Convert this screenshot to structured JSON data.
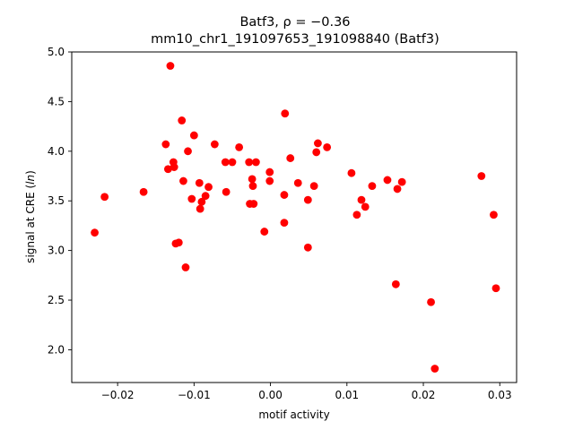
{
  "chart_data": {
    "type": "scatter",
    "title_line1": "Batf3, ρ = −0.36",
    "title_line2": "mm10_chr1_191097653_191098840 (Batf3)",
    "xlabel": "motif activity",
    "ylabel": "signal at CRE (ln)",
    "xlim": [
      -0.026,
      0.0322
    ],
    "ylim": [
      1.67,
      5.0
    ],
    "x_ticks": [
      -0.02,
      -0.01,
      0.0,
      0.01,
      0.02,
      0.03
    ],
    "x_tick_labels": [
      "−0.02",
      "−0.01",
      "0.00",
      "0.01",
      "0.02",
      "0.03"
    ],
    "y_ticks": [
      2.0,
      2.5,
      3.0,
      3.5,
      4.0,
      4.5,
      5.0
    ],
    "y_tick_labels": [
      "2.0",
      "2.5",
      "3.0",
      "3.5",
      "4.0",
      "4.5",
      "5.0"
    ],
    "grid": false,
    "marker_color": "#ff0000",
    "points": [
      {
        "x": -0.023,
        "y": 3.18
      },
      {
        "x": -0.0217,
        "y": 3.54
      },
      {
        "x": -0.0166,
        "y": 3.59
      },
      {
        "x": -0.0137,
        "y": 4.07
      },
      {
        "x": -0.0134,
        "y": 3.82
      },
      {
        "x": -0.0131,
        "y": 4.86
      },
      {
        "x": -0.0127,
        "y": 3.89
      },
      {
        "x": -0.0126,
        "y": 3.84
      },
      {
        "x": -0.0124,
        "y": 3.07
      },
      {
        "x": -0.012,
        "y": 3.08
      },
      {
        "x": -0.0116,
        "y": 4.31
      },
      {
        "x": -0.0114,
        "y": 3.7
      },
      {
        "x": -0.0111,
        "y": 2.83
      },
      {
        "x": -0.0108,
        "y": 4.0
      },
      {
        "x": -0.0103,
        "y": 3.52
      },
      {
        "x": -0.01,
        "y": 4.16
      },
      {
        "x": -0.0093,
        "y": 3.68
      },
      {
        "x": -0.0092,
        "y": 3.42
      },
      {
        "x": -0.009,
        "y": 3.49
      },
      {
        "x": -0.0085,
        "y": 3.55
      },
      {
        "x": -0.0081,
        "y": 3.64
      },
      {
        "x": -0.0073,
        "y": 4.07
      },
      {
        "x": -0.0059,
        "y": 3.89
      },
      {
        "x": -0.0058,
        "y": 3.59
      },
      {
        "x": -0.005,
        "y": 3.89
      },
      {
        "x": -0.0041,
        "y": 4.04
      },
      {
        "x": -0.0028,
        "y": 3.89
      },
      {
        "x": -0.0027,
        "y": 3.47
      },
      {
        "x": -0.0024,
        "y": 3.72
      },
      {
        "x": -0.0023,
        "y": 3.65
      },
      {
        "x": -0.0022,
        "y": 3.47
      },
      {
        "x": -0.0019,
        "y": 3.89
      },
      {
        "x": -0.0008,
        "y": 3.19
      },
      {
        "x": -0.0001,
        "y": 3.79
      },
      {
        "x": -0.0001,
        "y": 3.7
      },
      {
        "x": 0.0018,
        "y": 3.56
      },
      {
        "x": 0.0018,
        "y": 3.28
      },
      {
        "x": 0.0019,
        "y": 4.38
      },
      {
        "x": 0.0026,
        "y": 3.93
      },
      {
        "x": 0.0036,
        "y": 3.68
      },
      {
        "x": 0.0049,
        "y": 3.51
      },
      {
        "x": 0.0049,
        "y": 3.03
      },
      {
        "x": 0.0057,
        "y": 3.65
      },
      {
        "x": 0.006,
        "y": 3.99
      },
      {
        "x": 0.0062,
        "y": 4.08
      },
      {
        "x": 0.0074,
        "y": 4.04
      },
      {
        "x": 0.0106,
        "y": 3.78
      },
      {
        "x": 0.0113,
        "y": 3.36
      },
      {
        "x": 0.0119,
        "y": 3.51
      },
      {
        "x": 0.0124,
        "y": 3.44
      },
      {
        "x": 0.0133,
        "y": 3.65
      },
      {
        "x": 0.0153,
        "y": 3.71
      },
      {
        "x": 0.0164,
        "y": 2.66
      },
      {
        "x": 0.0166,
        "y": 3.62
      },
      {
        "x": 0.0172,
        "y": 3.69
      },
      {
        "x": 0.021,
        "y": 2.48
      },
      {
        "x": 0.0215,
        "y": 1.81
      },
      {
        "x": 0.0276,
        "y": 3.75
      },
      {
        "x": 0.0292,
        "y": 3.36
      },
      {
        "x": 0.0295,
        "y": 2.62
      }
    ]
  }
}
